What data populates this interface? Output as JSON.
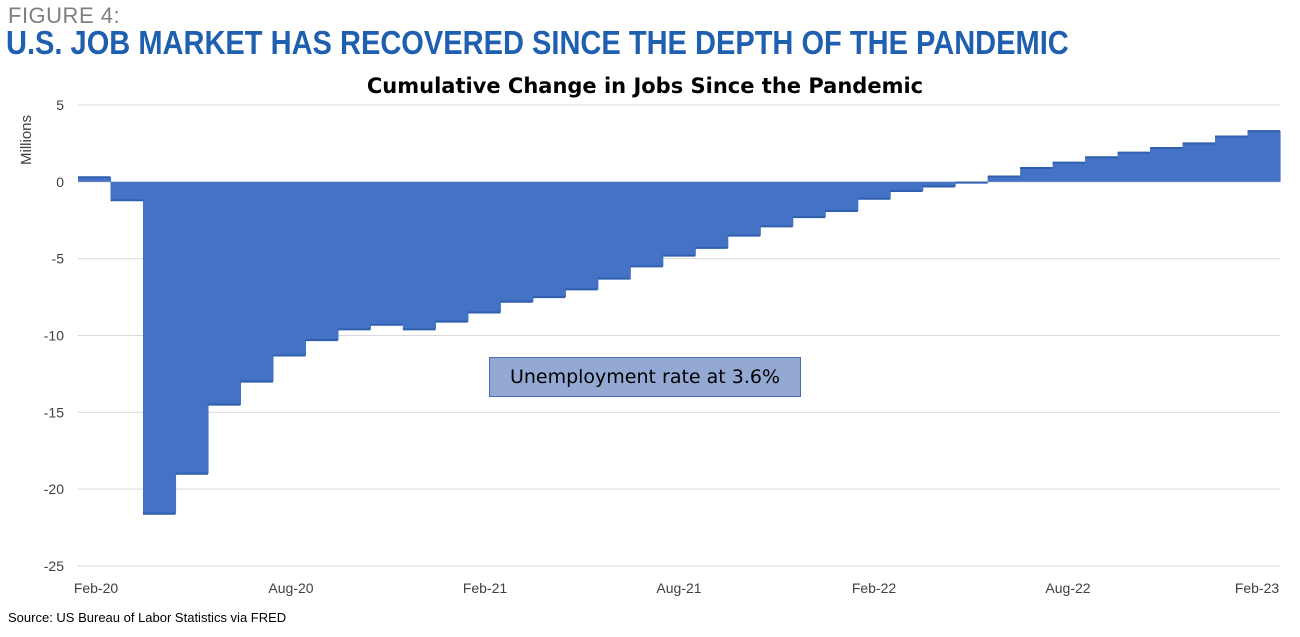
{
  "figure_label": "FIGURE 4:",
  "headline": "U.S. JOB MARKET HAS RECOVERED SINCE THE DEPTH OF THE PANDEMIC",
  "source": "Source: US Bureau of Labor Statistics via FRED",
  "annotation": "Unemployment rate at 3.6%",
  "colors": {
    "bar": "#4472c4",
    "bar_edge": "#2f5fae",
    "headline": "#1f5fb0",
    "grid": "#d9d9d9"
  },
  "chart_data": {
    "type": "area",
    "title": "Cumulative Change in Jobs Since the Pandemic",
    "ylabel": "Millions",
    "xlabel": "",
    "ylim": [
      -25,
      5
    ],
    "yticks": [
      5,
      0,
      -5,
      -10,
      -15,
      -20,
      -25
    ],
    "xtick_labels": [
      "Feb-20",
      "Aug-20",
      "Feb-21",
      "Aug-21",
      "Feb-22",
      "Aug-22",
      "Feb-23"
    ],
    "grid": true,
    "x": [
      "2020-02",
      "2020-03",
      "2020-04",
      "2020-05",
      "2020-06",
      "2020-07",
      "2020-08",
      "2020-09",
      "2020-10",
      "2020-11",
      "2020-12",
      "2021-01",
      "2021-02",
      "2021-03",
      "2021-04",
      "2021-05",
      "2021-06",
      "2021-07",
      "2021-08",
      "2021-09",
      "2021-10",
      "2021-11",
      "2021-12",
      "2022-01",
      "2022-02",
      "2022-03",
      "2022-04",
      "2022-05",
      "2022-06",
      "2022-07",
      "2022-08",
      "2022-09",
      "2022-10",
      "2022-11",
      "2022-12",
      "2023-01",
      "2023-02"
    ],
    "values": [
      0.3,
      -1.2,
      -21.6,
      -19.0,
      -14.5,
      -13.0,
      -11.3,
      -10.3,
      -9.6,
      -9.3,
      -9.6,
      -9.1,
      -8.5,
      -7.8,
      -7.5,
      -7.0,
      -6.3,
      -5.5,
      -4.8,
      -4.3,
      -3.5,
      -2.9,
      -2.3,
      -1.9,
      -1.1,
      -0.6,
      -0.3,
      -0.05,
      0.35,
      0.9,
      1.25,
      1.6,
      1.9,
      2.2,
      2.5,
      2.95,
      3.3
    ]
  }
}
